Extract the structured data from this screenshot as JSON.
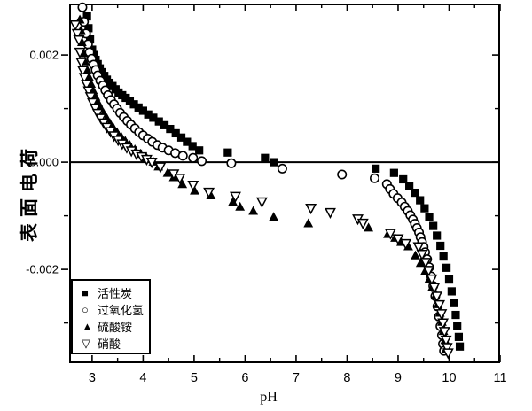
{
  "chart_data": {
    "type": "scatter",
    "title": "",
    "xlabel": "pH",
    "ylabel": "表面电荷",
    "background_color": "#ffffff",
    "marker_color": "#000000",
    "grid": false,
    "zero_line": true,
    "legend_position": "bottom-left",
    "x_axis": {
      "min": 2.55,
      "max": 11.0,
      "major_ticks": [
        3,
        4,
        5,
        6,
        7,
        8,
        9,
        10,
        11
      ],
      "minor_tick_step": 0.5
    },
    "y_axis": {
      "min": -0.00375,
      "max": 0.00296,
      "major_ticks": [
        {
          "value": 0.002,
          "label": "0.002"
        },
        {
          "value": 0.0,
          "label": "0.000"
        },
        {
          "value": -0.002,
          "label": "-0.002"
        }
      ],
      "minor_ticks": [
        0.001,
        -0.001,
        -0.003
      ]
    },
    "series": [
      {
        "name": "活性炭",
        "marker": "filled-square",
        "glyph": "■",
        "color": "#000000",
        "points": [
          [
            2.9,
            0.00272
          ],
          [
            2.93,
            0.0025
          ],
          [
            2.96,
            0.00229
          ],
          [
            3.0,
            0.0021
          ],
          [
            3.03,
            0.002
          ],
          [
            3.07,
            0.00191
          ],
          [
            3.11,
            0.00183
          ],
          [
            3.15,
            0.00175
          ],
          [
            3.19,
            0.00168
          ],
          [
            3.24,
            0.00161
          ],
          [
            3.29,
            0.00154
          ],
          [
            3.34,
            0.00148
          ],
          [
            3.4,
            0.00142
          ],
          [
            3.46,
            0.00136
          ],
          [
            3.52,
            0.0013
          ],
          [
            3.59,
            0.00125
          ],
          [
            3.66,
            0.0012
          ],
          [
            3.74,
            0.00114
          ],
          [
            3.82,
            0.00108
          ],
          [
            3.91,
            0.00102
          ],
          [
            4.0,
            0.00096
          ],
          [
            4.1,
            0.00089
          ],
          [
            4.2,
            0.00083
          ],
          [
            4.31,
            0.00076
          ],
          [
            4.42,
            0.00069
          ],
          [
            4.53,
            0.00062
          ],
          [
            4.64,
            0.00054
          ],
          [
            4.75,
            0.00046
          ],
          [
            4.86,
            0.00038
          ],
          [
            4.97,
            0.0003
          ],
          [
            5.1,
            0.00022
          ],
          [
            5.66,
            0.00018
          ],
          [
            6.39,
            8e-05
          ],
          [
            6.56,
            0.0
          ],
          [
            8.56,
            -0.00012
          ],
          [
            8.92,
            -0.0002
          ],
          [
            9.1,
            -0.00032
          ],
          [
            9.22,
            -0.00044
          ],
          [
            9.33,
            -0.00057
          ],
          [
            9.43,
            -0.00071
          ],
          [
            9.52,
            -0.00086
          ],
          [
            9.61,
            -0.00102
          ],
          [
            9.69,
            -0.00119
          ],
          [
            9.76,
            -0.00137
          ],
          [
            9.83,
            -0.00156
          ],
          [
            9.89,
            -0.00176
          ],
          [
            9.95,
            -0.00197
          ],
          [
            10.0,
            -0.00219
          ],
          [
            10.05,
            -0.00241
          ],
          [
            10.09,
            -0.00263
          ],
          [
            10.13,
            -0.00285
          ],
          [
            10.16,
            -0.00306
          ],
          [
            10.19,
            -0.00326
          ],
          [
            10.21,
            -0.00344
          ]
        ]
      },
      {
        "name": "过氧化氢",
        "marker": "open-circle",
        "glyph": "○",
        "color": "#000000",
        "points": [
          [
            2.81,
            0.00289
          ],
          [
            2.84,
            0.00262
          ],
          [
            2.88,
            0.0024
          ],
          [
            2.92,
            0.0022
          ],
          [
            2.95,
            0.00205
          ],
          [
            2.99,
            0.00193
          ],
          [
            3.03,
            0.00182
          ],
          [
            3.07,
            0.00172
          ],
          [
            3.11,
            0.00162
          ],
          [
            3.16,
            0.00152
          ],
          [
            3.21,
            0.00143
          ],
          [
            3.26,
            0.00134
          ],
          [
            3.31,
            0.00125
          ],
          [
            3.37,
            0.00116
          ],
          [
            3.43,
            0.00108
          ],
          [
            3.49,
            0.001
          ],
          [
            3.55,
            0.00092
          ],
          [
            3.62,
            0.00084
          ],
          [
            3.69,
            0.00077
          ],
          [
            3.76,
            0.0007
          ],
          [
            3.84,
            0.00063
          ],
          [
            3.92,
            0.00056
          ],
          [
            4.0,
            0.0005
          ],
          [
            4.09,
            0.00044
          ],
          [
            4.18,
            0.00038
          ],
          [
            4.28,
            0.00032
          ],
          [
            4.38,
            0.00027
          ],
          [
            4.5,
            0.00022
          ],
          [
            4.63,
            0.00017
          ],
          [
            4.78,
            0.00012
          ],
          [
            4.98,
            8e-05
          ],
          [
            5.15,
            2e-05
          ],
          [
            5.73,
            -2e-05
          ],
          [
            6.73,
            -0.00012
          ],
          [
            7.9,
            -0.00023
          ],
          [
            8.54,
            -0.0003
          ],
          [
            8.78,
            -0.00041
          ],
          [
            8.84,
            -0.0005
          ],
          [
            8.91,
            -0.00059
          ],
          [
            8.99,
            -0.00067
          ],
          [
            9.07,
            -0.00075
          ],
          [
            9.13,
            -0.00083
          ],
          [
            9.19,
            -0.00091
          ],
          [
            9.24,
            -0.00099
          ],
          [
            9.29,
            -0.00107
          ],
          [
            9.33,
            -0.00115
          ],
          [
            9.37,
            -0.00123
          ],
          [
            9.41,
            -0.00131
          ],
          [
            9.44,
            -0.0014
          ],
          [
            9.47,
            -0.00149
          ],
          [
            9.5,
            -0.00158
          ],
          [
            9.53,
            -0.00168
          ],
          [
            9.57,
            -0.00181
          ],
          [
            9.61,
            -0.00196
          ],
          [
            9.65,
            -0.00213
          ],
          [
            9.69,
            -0.00231
          ],
          [
            9.73,
            -0.0025
          ],
          [
            9.77,
            -0.00269
          ],
          [
            9.8,
            -0.00288
          ],
          [
            9.83,
            -0.00306
          ],
          [
            9.86,
            -0.00323
          ],
          [
            9.88,
            -0.00339
          ],
          [
            9.9,
            -0.00352
          ]
        ]
      },
      {
        "name": "硫酸铵",
        "marker": "filled-triangle-up",
        "glyph": "▲",
        "color": "#000000",
        "points": [
          [
            2.76,
            0.00266
          ],
          [
            2.78,
            0.00246
          ],
          [
            2.8,
            0.00224
          ],
          [
            2.83,
            0.00203
          ],
          [
            2.86,
            0.00188
          ],
          [
            2.9,
            0.00173
          ],
          [
            2.94,
            0.00159
          ],
          [
            2.98,
            0.00146
          ],
          [
            3.02,
            0.00134
          ],
          [
            3.07,
            0.00122
          ],
          [
            3.12,
            0.00111
          ],
          [
            3.17,
            0.00101
          ],
          [
            3.23,
            0.00091
          ],
          [
            3.29,
            0.00082
          ],
          [
            3.35,
            0.00073
          ],
          [
            3.42,
            0.00064
          ],
          [
            3.49,
            0.00056
          ],
          [
            3.57,
            0.00048
          ],
          [
            3.65,
            0.0004
          ],
          [
            3.74,
            0.00032
          ],
          [
            3.84,
            0.00024
          ],
          [
            3.95,
            0.00016
          ],
          [
            4.07,
            8e-05
          ],
          [
            4.2,
            1e-05
          ],
          [
            4.3,
            -8e-05
          ],
          [
            4.48,
            -0.0002
          ],
          [
            4.6,
            -0.00028
          ],
          [
            4.77,
            -0.00041
          ],
          [
            5.01,
            -0.00053
          ],
          [
            5.33,
            -0.00062
          ],
          [
            5.76,
            -0.00074
          ],
          [
            5.9,
            -0.00083
          ],
          [
            6.16,
            -0.00091
          ],
          [
            6.56,
            -0.00102
          ],
          [
            7.24,
            -0.00114
          ],
          [
            8.42,
            -0.00122
          ],
          [
            8.8,
            -0.00134
          ],
          [
            8.94,
            -0.00141
          ],
          [
            9.06,
            -0.00149
          ],
          [
            9.2,
            -0.00157
          ],
          [
            9.34,
            -0.00174
          ],
          [
            9.44,
            -0.00188
          ],
          [
            9.53,
            -0.00203
          ],
          [
            9.61,
            -0.00218
          ],
          [
            9.67,
            -0.00233
          ],
          [
            9.73,
            -0.00249
          ],
          [
            9.78,
            -0.00265
          ],
          [
            9.82,
            -0.00281
          ],
          [
            9.86,
            -0.00298
          ],
          [
            9.89,
            -0.00315
          ],
          [
            9.92,
            -0.00332
          ],
          [
            9.94,
            -0.00348
          ]
        ]
      },
      {
        "name": "硝酸",
        "marker": "open-triangle-down",
        "glyph": "▽",
        "color": "#000000",
        "points": [
          [
            2.67,
            0.00256
          ],
          [
            2.71,
            0.0024
          ],
          [
            2.74,
            0.00228
          ],
          [
            2.76,
            0.00205
          ],
          [
            2.79,
            0.00186
          ],
          [
            2.82,
            0.00171
          ],
          [
            2.85,
            0.00158
          ],
          [
            2.89,
            0.00145
          ],
          [
            2.93,
            0.00133
          ],
          [
            2.97,
            0.00122
          ],
          [
            3.01,
            0.00111
          ],
          [
            3.06,
            0.00101
          ],
          [
            3.11,
            0.00091
          ],
          [
            3.17,
            0.00082
          ],
          [
            3.23,
            0.00073
          ],
          [
            3.29,
            0.00065
          ],
          [
            3.36,
            0.00057
          ],
          [
            3.43,
            0.00049
          ],
          [
            3.51,
            0.00041
          ],
          [
            3.59,
            0.00034
          ],
          [
            3.68,
            0.00027
          ],
          [
            3.77,
            0.00021
          ],
          [
            3.87,
            0.00015
          ],
          [
            3.97,
            0.0001
          ],
          [
            4.07,
            5e-05
          ],
          [
            4.17,
            0.0
          ],
          [
            4.34,
            -9e-05
          ],
          [
            4.6,
            -0.00022
          ],
          [
            4.72,
            -0.0003
          ],
          [
            4.98,
            -0.00043
          ],
          [
            5.29,
            -0.00056
          ],
          [
            5.81,
            -0.00064
          ],
          [
            6.33,
            -0.00074
          ],
          [
            7.29,
            -0.00086
          ],
          [
            7.67,
            -0.00094
          ],
          [
            8.21,
            -0.00106
          ],
          [
            8.31,
            -0.00114
          ],
          [
            8.85,
            -0.00133
          ],
          [
            9.0,
            -0.00143
          ],
          [
            9.15,
            -0.00152
          ],
          [
            9.4,
            -0.00158
          ],
          [
            9.47,
            -0.00172
          ],
          [
            9.54,
            -0.00187
          ],
          [
            9.6,
            -0.00202
          ],
          [
            9.66,
            -0.00218
          ],
          [
            9.71,
            -0.00234
          ],
          [
            9.76,
            -0.0025
          ],
          [
            9.81,
            -0.00266
          ],
          [
            9.85,
            -0.00283
          ],
          [
            9.88,
            -0.003
          ],
          [
            9.91,
            -0.00316
          ],
          [
            9.94,
            -0.00332
          ],
          [
            9.96,
            -0.00346
          ],
          [
            9.98,
            -0.00356
          ]
        ]
      }
    ]
  }
}
